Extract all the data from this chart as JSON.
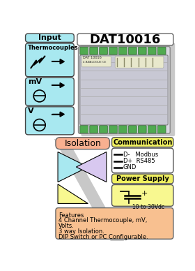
{
  "bg_color": "#ffffff",
  "title": "DAT10016",
  "cyan": "#a8e8f0",
  "isolation_color": "#f8b090",
  "comm_label_color": "#f0f060",
  "power_label_color": "#f0f060",
  "power_body_color": "#f8f890",
  "features_color": "#f8c090",
  "lavender": "#d8c8f0",
  "yellow": "#f8f890",
  "shadow_gray": "#c8c8c8",
  "device_bg": "#d8d8e0",
  "device_green": "#50aa50",
  "comm_body_color": "#ffffff",
  "features_text_lines": [
    "Features",
    "4 Channel Thermocouple, mV,",
    "Volts.",
    "3 way Isolation.",
    "DIP Switch or PC Configurable."
  ],
  "comm_lines": [
    "D-   Modbus",
    "D+  RS485",
    "GND"
  ]
}
